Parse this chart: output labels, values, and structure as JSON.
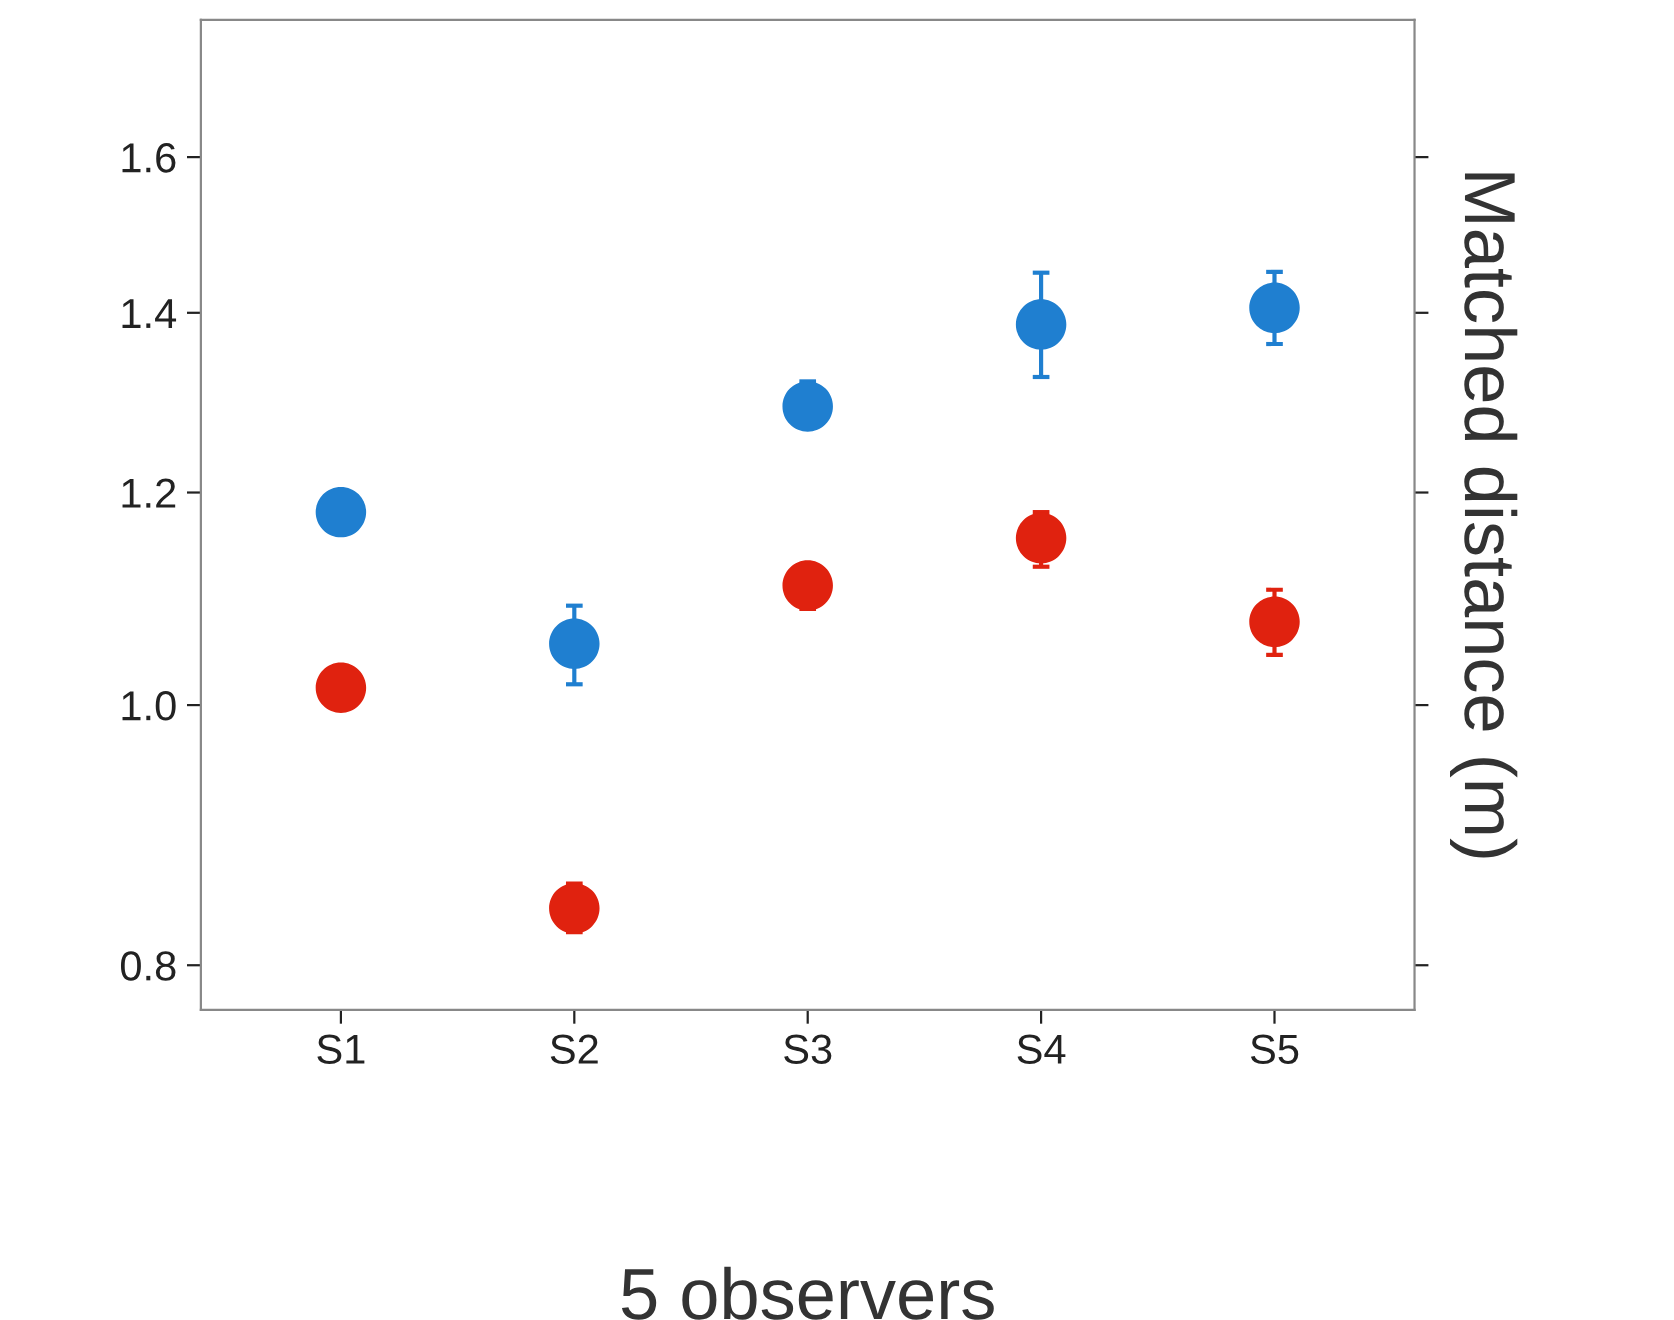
{
  "chart_data": {
    "type": "scatter",
    "xlabel": "5 observers",
    "ylabel": "Matched distance (m)",
    "categories": [
      "S1",
      "S2",
      "S3",
      "S4",
      "S5"
    ],
    "series": [
      {
        "color": "#1f7fd0",
        "values": [
          1.18,
          1.054,
          1.292,
          1.386,
          1.406
        ],
        "errors": [
          null,
          [
            1.018,
            1.089
          ],
          [
            1.27,
            1.32
          ],
          [
            1.325,
            1.449
          ],
          [
            1.363,
            1.45
          ]
        ]
      },
      {
        "color": "#e0220f",
        "values": [
          1.015,
          0.84,
          1.108,
          1.154,
          1.074
        ],
        "errors": [
          null,
          [
            0.823,
            0.858
          ],
          [
            1.086,
            1.126
          ],
          [
            1.126,
            1.18
          ],
          [
            1.044,
            1.104
          ]
        ]
      }
    ],
    "log": true,
    "ylim": [
      0.77,
      1.8
    ],
    "yticks": [
      0.8,
      {
        "value": 1,
        "label": "1.0"
      },
      1.2,
      1.4,
      1.6
    ],
    "marker": "circle",
    "grid": false,
    "legend": false
  }
}
